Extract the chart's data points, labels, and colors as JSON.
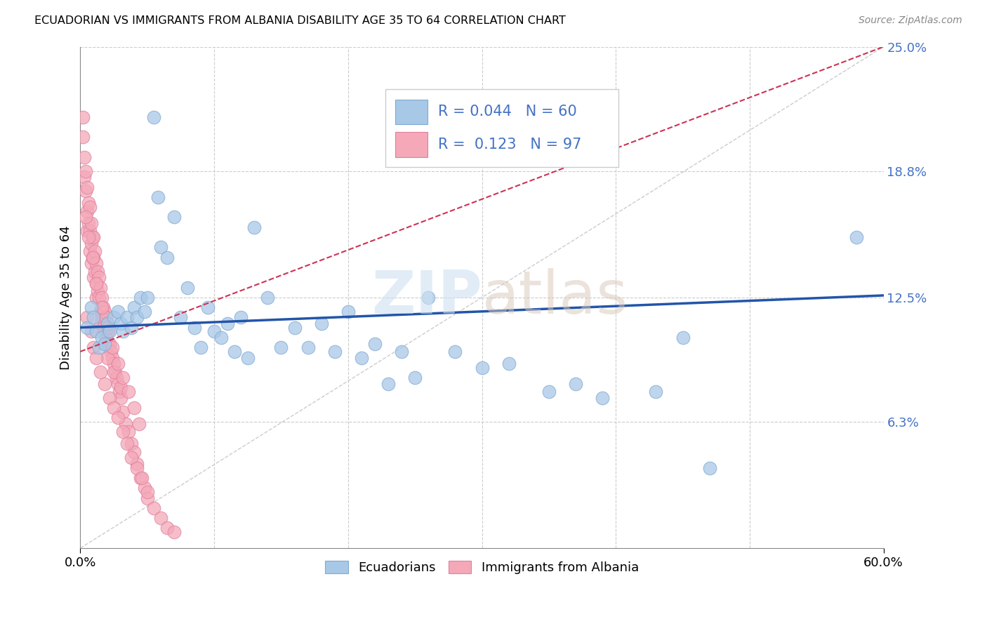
{
  "title": "ECUADORIAN VS IMMIGRANTS FROM ALBANIA DISABILITY AGE 35 TO 64 CORRELATION CHART",
  "source": "Source: ZipAtlas.com",
  "ylabel": "Disability Age 35 to 64",
  "xlim": [
    0.0,
    0.6
  ],
  "ylim": [
    0.0,
    0.25
  ],
  "yticks": [
    0.0,
    0.063,
    0.125,
    0.188,
    0.25
  ],
  "yticklabels": [
    "",
    "6.3%",
    "12.5%",
    "18.8%",
    "25.0%"
  ],
  "legend_labels": [
    "Ecuadorians",
    "Immigrants from Albania"
  ],
  "blue_color": "#a8c8e8",
  "pink_color": "#f4a8b8",
  "blue_line_color": "#2255aa",
  "pink_line_color": "#cc3355",
  "watermark_zip": "ZIP",
  "watermark_atlas": "atlas",
  "blue_x": [
    0.005,
    0.008,
    0.01,
    0.012,
    0.014,
    0.016,
    0.018,
    0.02,
    0.022,
    0.025,
    0.028,
    0.03,
    0.032,
    0.035,
    0.038,
    0.04,
    0.042,
    0.045,
    0.048,
    0.05,
    0.055,
    0.058,
    0.06,
    0.065,
    0.07,
    0.075,
    0.08,
    0.085,
    0.09,
    0.095,
    0.1,
    0.105,
    0.11,
    0.115,
    0.12,
    0.125,
    0.13,
    0.14,
    0.15,
    0.16,
    0.17,
    0.18,
    0.19,
    0.2,
    0.21,
    0.22,
    0.23,
    0.24,
    0.25,
    0.26,
    0.28,
    0.3,
    0.32,
    0.35,
    0.37,
    0.39,
    0.43,
    0.45,
    0.47,
    0.58
  ],
  "blue_y": [
    0.11,
    0.12,
    0.115,
    0.108,
    0.1,
    0.105,
    0.102,
    0.112,
    0.108,
    0.115,
    0.118,
    0.112,
    0.108,
    0.115,
    0.11,
    0.12,
    0.115,
    0.125,
    0.118,
    0.125,
    0.215,
    0.175,
    0.15,
    0.145,
    0.165,
    0.115,
    0.13,
    0.11,
    0.1,
    0.12,
    0.108,
    0.105,
    0.112,
    0.098,
    0.115,
    0.095,
    0.16,
    0.125,
    0.1,
    0.11,
    0.1,
    0.112,
    0.098,
    0.118,
    0.095,
    0.102,
    0.082,
    0.098,
    0.085,
    0.125,
    0.098,
    0.09,
    0.092,
    0.078,
    0.082,
    0.075,
    0.078,
    0.105,
    0.04,
    0.155
  ],
  "pink_x": [
    0.002,
    0.002,
    0.003,
    0.003,
    0.004,
    0.004,
    0.005,
    0.005,
    0.005,
    0.006,
    0.006,
    0.007,
    0.007,
    0.007,
    0.008,
    0.008,
    0.008,
    0.009,
    0.009,
    0.01,
    0.01,
    0.01,
    0.011,
    0.011,
    0.012,
    0.012,
    0.012,
    0.013,
    0.013,
    0.014,
    0.014,
    0.015,
    0.015,
    0.015,
    0.016,
    0.016,
    0.017,
    0.017,
    0.018,
    0.018,
    0.019,
    0.019,
    0.02,
    0.02,
    0.021,
    0.022,
    0.023,
    0.024,
    0.025,
    0.026,
    0.027,
    0.028,
    0.029,
    0.03,
    0.032,
    0.034,
    0.036,
    0.038,
    0.04,
    0.042,
    0.045,
    0.048,
    0.05,
    0.055,
    0.06,
    0.065,
    0.07,
    0.02,
    0.025,
    0.03,
    0.005,
    0.008,
    0.01,
    0.012,
    0.015,
    0.018,
    0.022,
    0.025,
    0.028,
    0.032,
    0.035,
    0.038,
    0.042,
    0.046,
    0.05,
    0.004,
    0.006,
    0.009,
    0.012,
    0.016,
    0.02,
    0.024,
    0.028,
    0.032,
    0.036,
    0.04,
    0.044
  ],
  "pink_y": [
    0.205,
    0.215,
    0.195,
    0.185,
    0.188,
    0.178,
    0.18,
    0.168,
    0.158,
    0.172,
    0.162,
    0.17,
    0.158,
    0.148,
    0.162,
    0.152,
    0.142,
    0.155,
    0.145,
    0.155,
    0.145,
    0.135,
    0.148,
    0.138,
    0.142,
    0.132,
    0.125,
    0.138,
    0.128,
    0.135,
    0.125,
    0.13,
    0.118,
    0.112,
    0.125,
    0.115,
    0.12,
    0.11,
    0.118,
    0.108,
    0.115,
    0.105,
    0.112,
    0.102,
    0.108,
    0.102,
    0.098,
    0.095,
    0.092,
    0.088,
    0.085,
    0.082,
    0.078,
    0.075,
    0.068,
    0.062,
    0.058,
    0.052,
    0.048,
    0.042,
    0.035,
    0.03,
    0.025,
    0.02,
    0.015,
    0.01,
    0.008,
    0.095,
    0.088,
    0.08,
    0.115,
    0.108,
    0.1,
    0.095,
    0.088,
    0.082,
    0.075,
    0.07,
    0.065,
    0.058,
    0.052,
    0.045,
    0.04,
    0.035,
    0.028,
    0.165,
    0.155,
    0.145,
    0.132,
    0.12,
    0.11,
    0.1,
    0.092,
    0.085,
    0.078,
    0.07,
    0.062
  ],
  "blue_trend_x0": 0.0,
  "blue_trend_y0": 0.11,
  "blue_trend_x1": 0.6,
  "blue_trend_y1": 0.126,
  "pink_trend_x0": 0.0,
  "pink_trend_y0": 0.098,
  "pink_trend_x1": 0.6,
  "pink_trend_y1": 0.25
}
